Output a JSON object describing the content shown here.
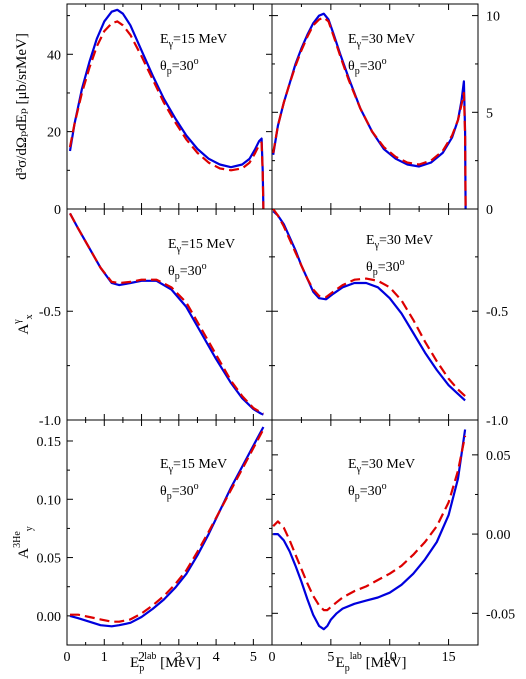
{
  "chart_data": [
    {
      "type": "line",
      "panel": "top-left",
      "xlim": [
        0,
        5.5
      ],
      "ylim": [
        0,
        53
      ],
      "xticks": [
        0,
        1,
        2,
        3,
        4,
        5
      ],
      "xtick_labels_shown": false,
      "yticks": [
        0,
        20,
        40
      ],
      "ytick_labels": [
        "0",
        "20",
        "40"
      ],
      "ylabel": "d³σ/dΩₚdEₚ [μb/srMeV]",
      "annotation": {
        "e_main": "E",
        "e_sub": "γ",
        "e_val": "=15 MeV",
        "t_main": "θ",
        "t_sub": "p",
        "t_val": "=30",
        "t_sup": "o"
      },
      "series": [
        {
          "color": "#0000dd",
          "style": "solid",
          "x": [
            0.08,
            0.2,
            0.4,
            0.6,
            0.8,
            1.0,
            1.2,
            1.35,
            1.5,
            1.7,
            2.0,
            2.3,
            2.6,
            2.9,
            3.2,
            3.5,
            3.8,
            4.1,
            4.4,
            4.7,
            4.9,
            5.05,
            5.15,
            5.22,
            5.25,
            5.27
          ],
          "y": [
            15,
            22,
            31,
            38,
            44,
            48.5,
            51,
            51.5,
            50.5,
            47.5,
            41,
            34.5,
            28.5,
            23.5,
            19,
            15.5,
            13,
            11.5,
            10.8,
            11.5,
            13,
            15.5,
            17.5,
            18.2,
            10,
            0
          ]
        },
        {
          "color": "#dd0000",
          "style": "dashed",
          "x": [
            0.08,
            0.2,
            0.4,
            0.6,
            0.8,
            1.0,
            1.2,
            1.35,
            1.5,
            1.7,
            2.0,
            2.3,
            2.6,
            2.9,
            3.2,
            3.5,
            3.8,
            4.1,
            4.4,
            4.7,
            4.9,
            5.05,
            5.15,
            5.22,
            5.25,
            5.27
          ],
          "y": [
            16,
            22,
            30,
            36.5,
            42,
            46,
            48,
            48.5,
            47.5,
            45,
            39.5,
            33.5,
            27.5,
            22.5,
            18,
            14.5,
            12,
            10.5,
            10,
            10.5,
            12,
            14.5,
            16.5,
            17.2,
            9.5,
            0
          ]
        }
      ]
    },
    {
      "type": "line",
      "panel": "top-right",
      "xlim": [
        0,
        17.5
      ],
      "ylim": [
        0,
        10.6
      ],
      "xticks": [
        0,
        5,
        10,
        15
      ],
      "xtick_labels_shown": false,
      "yticks": [
        0,
        5,
        10
      ],
      "ytick_labels": [
        "0",
        "5",
        "10"
      ],
      "ytick_side": "right",
      "annotation": {
        "e_main": "E",
        "e_sub": "γ",
        "e_val": "=30 MeV",
        "t_main": "θ",
        "t_sub": "p",
        "t_val": "=30",
        "t_sup": "o"
      },
      "series": [
        {
          "color": "#0000dd",
          "style": "solid",
          "x": [
            0.1,
            0.5,
            1.0,
            1.5,
            2.0,
            2.5,
            3.0,
            3.5,
            4.0,
            4.4,
            4.8,
            5.2,
            5.8,
            6.5,
            7.5,
            8.5,
            9.5,
            10.5,
            11.5,
            12.5,
            13.5,
            14.5,
            15.3,
            15.8,
            16.1,
            16.3,
            16.4,
            16.45
          ],
          "y": [
            2.8,
            4.3,
            5.5,
            6.5,
            7.5,
            8.3,
            9.0,
            9.6,
            10.0,
            10.1,
            9.8,
            9.1,
            8.0,
            6.8,
            5.2,
            4.0,
            3.1,
            2.6,
            2.3,
            2.2,
            2.4,
            2.9,
            3.7,
            4.6,
            5.6,
            6.6,
            4.0,
            0
          ]
        },
        {
          "color": "#dd0000",
          "style": "dashed",
          "x": [
            0.1,
            0.5,
            1.0,
            1.5,
            2.0,
            2.5,
            3.0,
            3.5,
            4.0,
            4.4,
            4.8,
            5.2,
            5.8,
            6.5,
            7.5,
            8.5,
            9.5,
            10.5,
            11.5,
            12.5,
            13.5,
            14.5,
            15.3,
            15.8,
            16.1,
            16.3,
            16.4,
            16.45
          ],
          "y": [
            2.9,
            4.3,
            5.5,
            6.5,
            7.4,
            8.2,
            8.9,
            9.5,
            9.8,
            9.9,
            9.7,
            9.0,
            7.9,
            6.7,
            5.2,
            4.0,
            3.2,
            2.7,
            2.4,
            2.3,
            2.5,
            3.0,
            3.8,
            4.6,
            5.4,
            6.0,
            3.8,
            0
          ]
        }
      ]
    },
    {
      "type": "line",
      "panel": "middle-left",
      "xlim": [
        0,
        5.5
      ],
      "ylim": [
        -1.0,
        -0.03
      ],
      "xticks": [
        0,
        1,
        2,
        3,
        4,
        5
      ],
      "xtick_labels_shown": false,
      "yticks": [
        -1.0,
        -0.5
      ],
      "ytick_labels": [
        "-1.0",
        "-0.5"
      ],
      "ylabel_main": "A",
      "ylabel_sub": "x",
      "ylabel_sup": "γ",
      "annotation": {
        "e_main": "E",
        "e_sub": "γ",
        "e_val": "=15 MeV",
        "t_main": "θ",
        "t_sub": "p",
        "t_val": "=30",
        "t_sup": "o"
      },
      "series": [
        {
          "color": "#0000dd",
          "style": "solid",
          "x": [
            0.08,
            0.3,
            0.6,
            0.9,
            1.2,
            1.4,
            1.7,
            2.0,
            2.4,
            2.8,
            3.2,
            3.6,
            4.0,
            4.4,
            4.7,
            5.0,
            5.2,
            5.27
          ],
          "y": [
            -0.05,
            -0.12,
            -0.21,
            -0.3,
            -0.37,
            -0.38,
            -0.37,
            -0.36,
            -0.36,
            -0.4,
            -0.48,
            -0.6,
            -0.72,
            -0.83,
            -0.9,
            -0.95,
            -0.97,
            -0.975
          ]
        },
        {
          "color": "#dd0000",
          "style": "dashed",
          "x": [
            0.08,
            0.3,
            0.6,
            0.9,
            1.2,
            1.4,
            1.7,
            2.0,
            2.4,
            2.8,
            3.2,
            3.6,
            4.0,
            4.4,
            4.7,
            5.0,
            5.2,
            5.27
          ],
          "y": [
            -0.05,
            -0.12,
            -0.21,
            -0.3,
            -0.365,
            -0.37,
            -0.365,
            -0.355,
            -0.355,
            -0.39,
            -0.46,
            -0.58,
            -0.7,
            -0.82,
            -0.89,
            -0.945,
            -0.965,
            -0.97
          ]
        }
      ]
    },
    {
      "type": "line",
      "panel": "middle-right",
      "xlim": [
        0,
        17.5
      ],
      "ylim": [
        -1.0,
        -0.03
      ],
      "xticks": [
        0,
        5,
        10,
        15
      ],
      "xtick_labels_shown": false,
      "yticks": [
        -1.0,
        -0.5
      ],
      "ytick_labels": [
        "-1.0",
        "-0.5"
      ],
      "ytick_side": "right",
      "annotation": {
        "e_main": "E",
        "e_sub": "γ",
        "e_val": "=30 MeV",
        "t_main": "θ",
        "t_sub": "p",
        "t_val": "=30",
        "t_sup": "o"
      },
      "series": [
        {
          "color": "#0000dd",
          "style": "solid",
          "x": [
            0.1,
            0.5,
            1.0,
            1.5,
            2.0,
            2.5,
            3.0,
            3.5,
            4.0,
            4.6,
            5.2,
            6.0,
            7.0,
            8.0,
            9.0,
            10.0,
            11.0,
            12.0,
            13.0,
            14.0,
            15.0,
            15.8,
            16.4
          ],
          "y": [
            -0.04,
            -0.06,
            -0.1,
            -0.16,
            -0.22,
            -0.29,
            -0.35,
            -0.41,
            -0.44,
            -0.445,
            -0.42,
            -0.39,
            -0.37,
            -0.37,
            -0.39,
            -0.44,
            -0.51,
            -0.6,
            -0.69,
            -0.77,
            -0.84,
            -0.88,
            -0.91
          ]
        },
        {
          "color": "#dd0000",
          "style": "dashed",
          "x": [
            0.1,
            0.5,
            1.0,
            1.5,
            2.0,
            2.5,
            3.0,
            3.5,
            4.0,
            4.6,
            5.2,
            6.0,
            7.0,
            8.0,
            9.0,
            10.0,
            11.0,
            12.0,
            13.0,
            14.0,
            15.0,
            15.8,
            16.4
          ],
          "y": [
            -0.03,
            -0.06,
            -0.11,
            -0.17,
            -0.23,
            -0.29,
            -0.35,
            -0.4,
            -0.43,
            -0.435,
            -0.41,
            -0.38,
            -0.355,
            -0.35,
            -0.36,
            -0.39,
            -0.45,
            -0.54,
            -0.64,
            -0.73,
            -0.81,
            -0.86,
            -0.89
          ]
        }
      ]
    },
    {
      "type": "line",
      "panel": "bottom-left",
      "xlim": [
        0,
        5.5
      ],
      "ylim": [
        -0.025,
        0.168
      ],
      "xticks": [
        0,
        1,
        2,
        3,
        4,
        5
      ],
      "xtick_labels": [
        "0",
        "1",
        "2",
        "3",
        "4",
        "5"
      ],
      "yticks": [
        0.0,
        0.05,
        0.1,
        0.15
      ],
      "ytick_labels": [
        "0.00",
        "0.05",
        "0.10",
        "0.15"
      ],
      "ylabel_main": "A",
      "ylabel_sub": "y",
      "ylabel_sup": "3He",
      "xlabel_main": "E",
      "xlabel_sub": "p",
      "xlabel_sup": "lab",
      "xlabel_unit": " [MeV]",
      "annotation": {
        "e_main": "E",
        "e_sub": "γ",
        "e_val": "=15 MeV",
        "t_main": "θ",
        "t_sub": "p",
        "t_val": "=30",
        "t_sup": "o"
      },
      "series": [
        {
          "color": "#0000dd",
          "style": "solid",
          "x": [
            0.08,
            0.3,
            0.6,
            0.9,
            1.2,
            1.4,
            1.7,
            2.0,
            2.3,
            2.6,
            2.9,
            3.2,
            3.5,
            3.8,
            4.1,
            4.4,
            4.7,
            5.0,
            5.27
          ],
          "y": [
            0.0,
            -0.002,
            -0.005,
            -0.008,
            -0.009,
            -0.008,
            -0.006,
            -0.001,
            0.006,
            0.014,
            0.024,
            0.036,
            0.052,
            0.07,
            0.09,
            0.11,
            0.128,
            0.146,
            0.162
          ]
        },
        {
          "color": "#dd0000",
          "style": "dashed",
          "x": [
            0.08,
            0.3,
            0.6,
            0.9,
            1.2,
            1.4,
            1.7,
            2.0,
            2.3,
            2.6,
            2.9,
            3.2,
            3.5,
            3.8,
            4.1,
            4.4,
            4.7,
            5.0,
            5.27
          ],
          "y": [
            0.001,
            0.001,
            -0.001,
            -0.003,
            -0.005,
            -0.005,
            -0.003,
            0.002,
            0.009,
            0.017,
            0.027,
            0.039,
            0.055,
            0.072,
            0.09,
            0.108,
            0.126,
            0.144,
            0.16
          ]
        }
      ]
    },
    {
      "type": "line",
      "panel": "bottom-right",
      "xlim": [
        0,
        17.5
      ],
      "ylim": [
        -0.07,
        0.072
      ],
      "xticks": [
        0,
        5,
        10,
        15
      ],
      "xtick_labels": [
        "0",
        "5",
        "10",
        "15"
      ],
      "yticks": [
        -0.05,
        0.0,
        0.05
      ],
      "ytick_labels": [
        "-0.05",
        "0.00",
        "0.05"
      ],
      "ytick_side": "right",
      "xlabel_main": "E",
      "xlabel_sub": "p",
      "xlabel_sup": "lab",
      "xlabel_unit": " [MeV]",
      "annotation": {
        "e_main": "E",
        "e_sub": "γ",
        "e_val": "=30 MeV",
        "t_main": "θ",
        "t_sub": "p",
        "t_val": "=30",
        "t_sup": "o"
      },
      "series": [
        {
          "color": "#0000dd",
          "style": "solid",
          "x": [
            0.1,
            0.5,
            1.0,
            1.5,
            2.0,
            2.5,
            3.0,
            3.5,
            4.0,
            4.4,
            4.7,
            5.0,
            5.5,
            6.0,
            7.0,
            8.0,
            9.0,
            10.0,
            11.0,
            12.0,
            13.0,
            14.0,
            15.0,
            15.8,
            16.4
          ],
          "y": [
            0.0,
            0.0,
            -0.004,
            -0.011,
            -0.02,
            -0.03,
            -0.041,
            -0.051,
            -0.058,
            -0.06,
            -0.058,
            -0.054,
            -0.05,
            -0.047,
            -0.044,
            -0.042,
            -0.04,
            -0.037,
            -0.032,
            -0.025,
            -0.016,
            -0.005,
            0.012,
            0.035,
            0.066
          ]
        },
        {
          "color": "#dd0000",
          "style": "dashed",
          "x": [
            0.1,
            0.5,
            1.0,
            1.5,
            2.0,
            2.5,
            3.0,
            3.5,
            4.0,
            4.4,
            4.7,
            5.0,
            5.5,
            6.0,
            7.0,
            8.0,
            9.0,
            10.0,
            11.0,
            12.0,
            13.0,
            14.0,
            15.0,
            15.8,
            16.4
          ],
          "y": [
            0.005,
            0.008,
            0.004,
            -0.004,
            -0.013,
            -0.022,
            -0.031,
            -0.039,
            -0.045,
            -0.048,
            -0.048,
            -0.046,
            -0.043,
            -0.04,
            -0.036,
            -0.033,
            -0.029,
            -0.025,
            -0.02,
            -0.013,
            -0.005,
            0.005,
            0.02,
            0.04,
            0.062
          ]
        }
      ]
    }
  ]
}
